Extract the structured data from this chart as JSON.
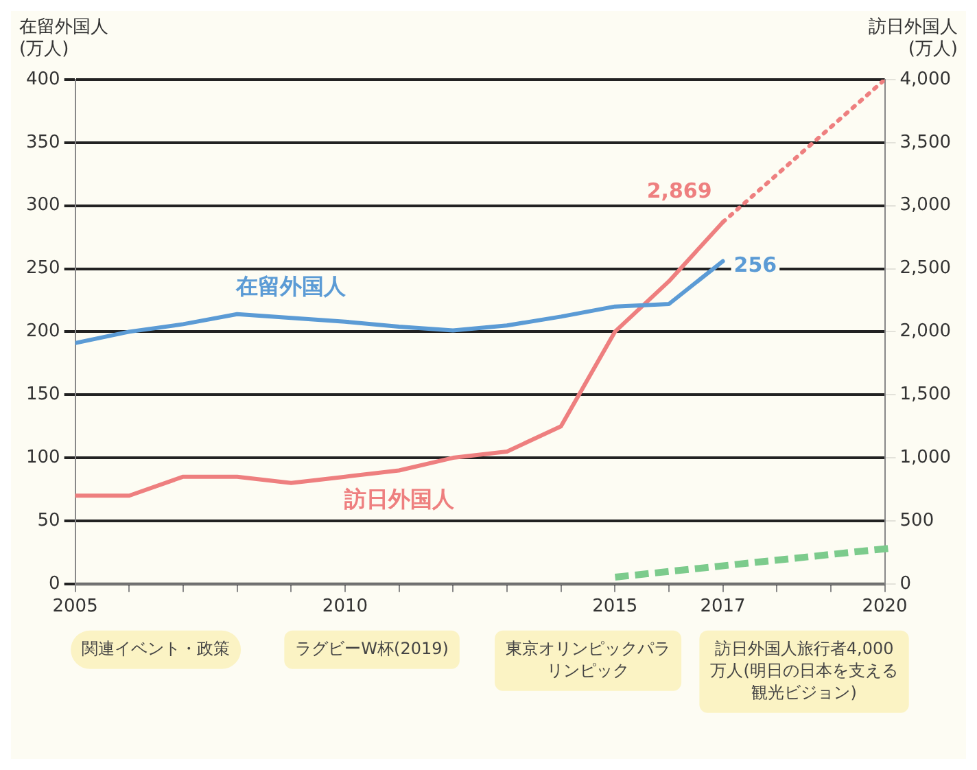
{
  "chart_data": {
    "type": "line",
    "x": [
      2005,
      2006,
      2007,
      2008,
      2009,
      2010,
      2011,
      2012,
      2013,
      2014,
      2015,
      2016,
      2017,
      2018,
      2019,
      2020
    ],
    "series": [
      {
        "name": "在留外国人",
        "color": "#5b9bd5",
        "values": [
          191,
          200,
          206,
          214,
          211,
          208,
          204,
          201,
          205,
          212,
          220,
          222,
          256,
          null,
          null,
          null
        ],
        "value_labels": [
          null,
          null,
          null,
          null,
          null,
          null,
          null,
          null,
          null,
          null,
          null,
          null,
          "256",
          null,
          null,
          null
        ]
      },
      {
        "name": "訪日外国人",
        "color": "#ee7f7f",
        "axis": "y2",
        "values": [
          700,
          700,
          850,
          850,
          800,
          850,
          900,
          1000,
          1050,
          1250,
          2000,
          2400,
          2869,
          null,
          null,
          null
        ],
        "value_labels": [
          null,
          null,
          null,
          null,
          null,
          null,
          null,
          null,
          null,
          null,
          null,
          null,
          "2,869",
          null,
          null,
          null
        ]
      },
      {
        "color": "#ee7f7f",
        "axis": "y2",
        "line_style": "dotted",
        "values": [
          null,
          null,
          null,
          null,
          null,
          null,
          null,
          null,
          null,
          null,
          null,
          null,
          2869,
          null,
          null,
          4000
        ]
      }
    ],
    "ylabel": "在留外国人\n(万人)",
    "y2label": "訪日外国人\n(万人)",
    "xlim": [
      2005,
      2020
    ],
    "xticks": [
      2005,
      {
        "value": 2006,
        "label": null
      },
      {
        "value": 2007,
        "label": null
      },
      {
        "value": 2008,
        "label": null
      },
      {
        "value": 2009,
        "label": null
      },
      2010,
      {
        "value": 2011,
        "label": null
      },
      {
        "value": 2012,
        "label": null
      },
      {
        "value": 2013,
        "label": null
      },
      {
        "value": 2014,
        "label": null
      },
      2015,
      {
        "value": 2016,
        "label": null
      },
      2017,
      {
        "value": 2018,
        "label": null
      },
      {
        "value": 2019,
        "label": null
      },
      2020
    ],
    "ylim": [
      0,
      400
    ],
    "yticks": [
      0,
      50,
      100,
      150,
      200,
      250,
      300,
      350,
      400
    ],
    "y2lim": [
      0,
      4000
    ],
    "y2ticks": [
      0,
      500,
      {
        "value": 1000,
        "label": "1,000"
      },
      {
        "value": 1500,
        "label": "1,500"
      },
      {
        "value": 2000,
        "label": "2,000"
      },
      {
        "value": 2500,
        "label": "2,500"
      },
      {
        "value": 3000,
        "label": "3,000"
      },
      {
        "value": 3500,
        "label": "3,500"
      },
      {
        "value": 4000,
        "label": "4,000"
      }
    ],
    "annotations": [
      "関連イベント・政策",
      "ラグビーW杯(2019)",
      "東京オリンピックパラリンピック",
      "訪日外国人旅行者4,000万人(明日の日本を支える観光ビジョン)"
    ],
    "grid": "y",
    "legend": false,
    "marker": "none",
    "line_style": "solid"
  }
}
